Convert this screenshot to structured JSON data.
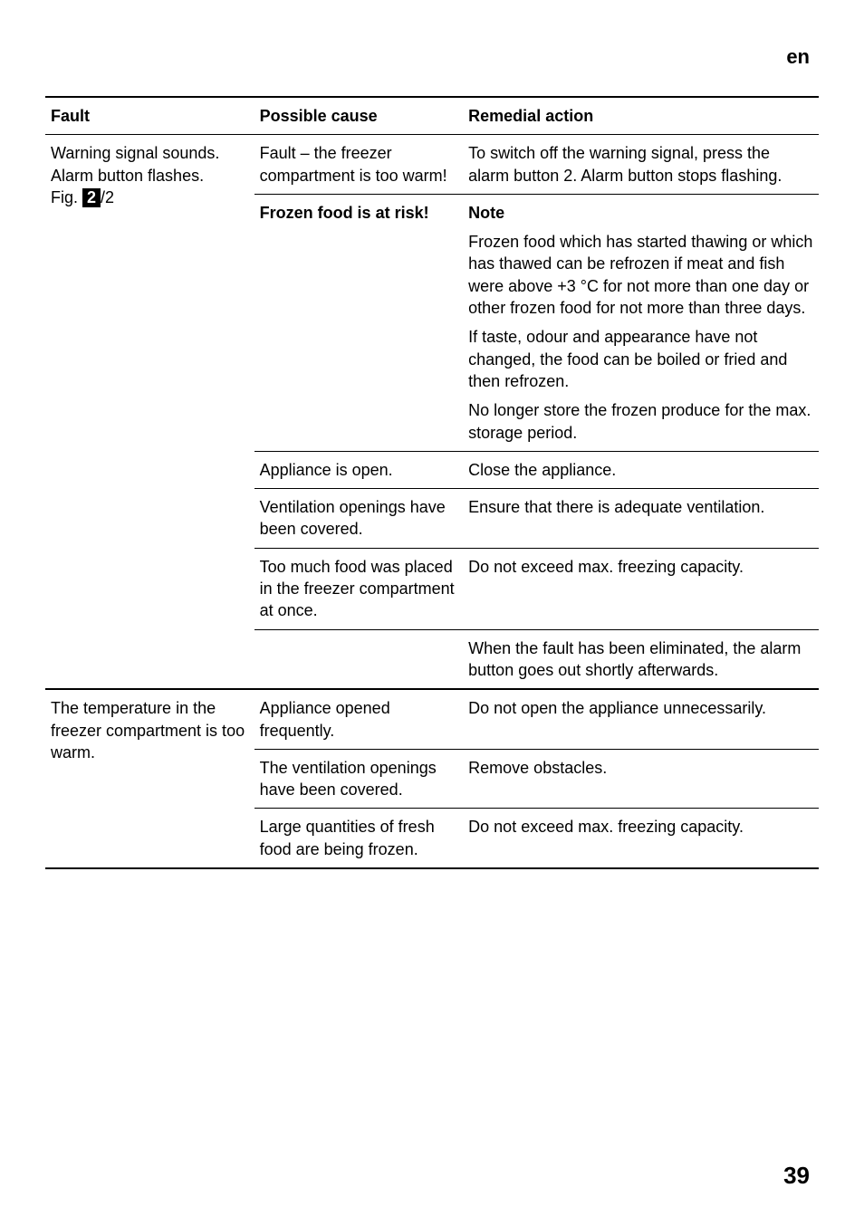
{
  "lang": "en",
  "page_number": "39",
  "table": {
    "headers": {
      "fault": "Fault",
      "cause": "Possible cause",
      "action": "Remedial action"
    },
    "rows": [
      {
        "fault_lines": [
          "Warning signal sounds.",
          "Alarm button flashes."
        ],
        "fault_fig_prefix": "Fig. ",
        "fault_fig_box": "2",
        "fault_fig_suffix": "/2",
        "cause": "Fault – the freezer compartment is too warm!",
        "action": "To switch off the warning signal, press the alarm button 2. Alarm button stops flashing."
      },
      {
        "cause_bold": "Frozen food is at risk!",
        "action_bold": "Note",
        "action_paras": [
          "Frozen food which has started thawing or which has thawed can be refrozen if meat and fish were above +3 °C for not more than one day or other frozen food for not more than three days.",
          "If taste, odour and appearance have not changed, the food can be boiled or fried and then refrozen.",
          "No longer store the frozen produce for the max. storage period."
        ]
      },
      {
        "cause": "Appliance is open.",
        "action": "Close the appliance."
      },
      {
        "cause": "Ventilation openings have been covered.",
        "action": "Ensure that there is adequate ventilation."
      },
      {
        "cause": "Too much food was placed in the freezer compartment at once.",
        "action": "Do not exceed max. freezing capacity."
      },
      {
        "action": "When the fault has been eliminated, the alarm button goes out shortly afterwards."
      },
      {
        "fault": "The temperature in the freezer compartment is too warm.",
        "cause": "Appliance opened frequently.",
        "action": "Do not open the appliance unnecessarily."
      },
      {
        "cause": "The ventilation openings have been covered.",
        "action": "Remove obstacles."
      },
      {
        "cause": "Large quantities of fresh food are being frozen.",
        "action": "Do not exceed max. freezing capacity."
      }
    ]
  }
}
